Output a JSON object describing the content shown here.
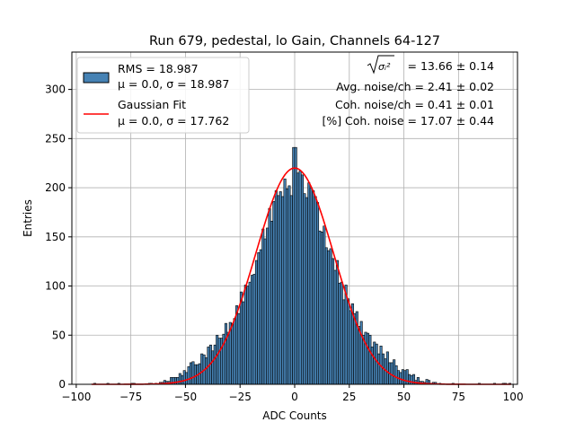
{
  "chart_data": {
    "type": "bar",
    "title": "Run 679, pedestal, lo Gain, Channels 64-127",
    "xlabel": "ADC Counts",
    "ylabel": "Entries",
    "xlim": [
      -102,
      102
    ],
    "ylim": [
      0,
      338
    ],
    "xticks": [
      -100,
      -75,
      -50,
      -25,
      0,
      25,
      50,
      75,
      100
    ],
    "yticks": [
      0,
      50,
      100,
      150,
      200,
      250,
      300
    ],
    "xtick_labels": [
      "−100",
      "−75",
      "−50",
      "−25",
      "0",
      "25",
      "50",
      "75",
      "100"
    ],
    "ytick_labels": [
      "0",
      "50",
      "100",
      "150",
      "200",
      "250",
      "300"
    ],
    "grid": true,
    "legend_position": "top-left",
    "histogram": {
      "name": "RMS = 18.987",
      "stats_label": "μ = 0.0, σ = 18.987",
      "bin_width": 1,
      "bin_start": -93,
      "bin_end": 99,
      "peak_count": 241,
      "color": "#4682b4",
      "edge_color": "#000000"
    },
    "fit": {
      "name": "Gaussian Fit",
      "stats_label": "μ = 0.0, σ = 17.762",
      "mu": 0.0,
      "sigma": 17.762,
      "amplitude": 220,
      "x_range": [
        -93,
        99
      ],
      "color": "#ff0000"
    },
    "annotations": [
      {
        "lhs": "σᵢ²",
        "rhs": "= 13.66 ± 0.14"
      },
      {
        "text": "Avg. noise/ch = 2.41 ± 0.02"
      },
      {
        "text": "Coh. noise/ch = 0.41 ± 0.01"
      },
      {
        "text": "[%] Coh. noise = 17.07 ± 0.44"
      }
    ]
  }
}
